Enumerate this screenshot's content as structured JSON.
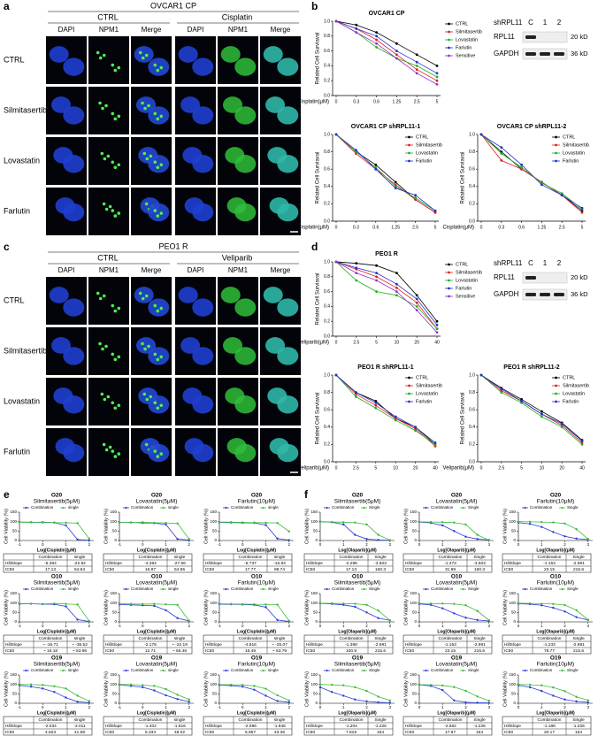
{
  "panel_a": {
    "label": "a",
    "title": "OVCAR1 CP",
    "groups": [
      {
        "name": "CTRL",
        "channels": [
          "DAPI",
          "NPM1",
          "Merge"
        ]
      },
      {
        "name": "Cisplatin",
        "channels": [
          "DAPI",
          "NPM1",
          "Merge"
        ]
      }
    ],
    "rows": [
      "CTRL",
      "Silmitasertib",
      "Lovastatin",
      "Farlutin"
    ]
  },
  "panel_c": {
    "label": "c",
    "title": "PEO1 R",
    "groups": [
      {
        "name": "CTRL",
        "channels": [
          "DAPI",
          "NPM1",
          "Merge"
        ]
      },
      {
        "name": "Veliparib",
        "channels": [
          "DAPI",
          "NPM1",
          "Merge"
        ]
      }
    ],
    "rows": [
      "CTRL",
      "Silmitasertib",
      "Lovastatin",
      "Farlutin"
    ]
  },
  "panel_b": {
    "label": "b",
    "type": "line",
    "xlabel": "Cisplatin(μM)",
    "ylabel": "Related Cell Surviaval",
    "categories": [
      "0",
      "0.3",
      "0.6",
      "1.25",
      "2.5",
      "5"
    ],
    "ylim": [
      0,
      1
    ],
    "yticks": [
      {
        "value": 0,
        "label": "0.0"
      },
      0.2,
      0.4,
      0.6,
      0.8,
      {
        "value": 1,
        "label": "1.0"
      }
    ],
    "series": [
      {
        "name": "CTRL",
        "color": "#000000"
      },
      {
        "name": "Silmitasertib",
        "color": "#e02020"
      },
      {
        "name": "Lovastatin",
        "color": "#22b022"
      },
      {
        "name": "Farlutin",
        "color": "#2030d0"
      },
      {
        "name": "Sensitive",
        "color": "#9a2fc8"
      }
    ],
    "charts": [
      {
        "title": "OVCAR1 CP",
        "values": [
          [
            1,
            0.95,
            0.85,
            0.7,
            0.55,
            0.4
          ],
          [
            1,
            0.9,
            0.75,
            0.55,
            0.35,
            0.2
          ],
          [
            1,
            0.85,
            0.65,
            0.5,
            0.4,
            0.25
          ],
          [
            1,
            0.9,
            0.8,
            0.6,
            0.45,
            0.3
          ],
          [
            1,
            0.85,
            0.7,
            0.5,
            0.3,
            0.15
          ]
        ]
      },
      {
        "title": "OVCAR1 CP shRPL11-1",
        "values": [
          [
            1,
            0.8,
            0.65,
            0.45,
            0.25,
            0.1
          ],
          [
            1,
            0.78,
            0.6,
            0.42,
            0.25,
            0.1
          ],
          [
            1,
            0.8,
            0.62,
            0.4,
            0.27,
            0.12
          ],
          [
            1,
            0.82,
            0.6,
            0.38,
            0.3,
            0.12
          ]
        ]
      },
      {
        "title": "OVCAR1 CP shRPL11-2",
        "values": [
          [
            1,
            0.8,
            0.6,
            0.45,
            0.3,
            0.12
          ],
          [
            1,
            0.7,
            0.6,
            0.45,
            0.3,
            0.1
          ],
          [
            1,
            0.78,
            0.62,
            0.44,
            0.32,
            0.14
          ],
          [
            1,
            0.85,
            0.65,
            0.42,
            0.3,
            0.15
          ]
        ]
      }
    ],
    "blot": {
      "header": "shRPL11",
      "lanes": [
        "C",
        "1",
        "2"
      ],
      "bands": [
        {
          "name": "RPL11",
          "size": "20 kD"
        },
        {
          "name": "GAPDH",
          "size": "36 kD"
        }
      ]
    }
  },
  "panel_d": {
    "label": "d",
    "type": "line",
    "xlabel": "Veliparib(μM)",
    "ylabel": "Related Cell Surviaval",
    "categories": [
      "0",
      "2.5",
      "5",
      "10",
      "20",
      "40"
    ],
    "ylim": [
      0,
      1
    ],
    "yticks": [
      {
        "value": 0,
        "label": "0.0"
      },
      0.2,
      0.4,
      0.6,
      0.8,
      {
        "value": 1,
        "label": "1.0"
      }
    ],
    "series": [
      {
        "name": "CTRL",
        "color": "#000000"
      },
      {
        "name": "Silmitasertib",
        "color": "#e02020"
      },
      {
        "name": "Lovastatin",
        "color": "#22b022"
      },
      {
        "name": "Farlutin",
        "color": "#2030d0"
      },
      {
        "name": "Sensitive",
        "color": "#9a2fc8"
      }
    ],
    "charts": [
      {
        "title": "PEO1 R",
        "values": [
          [
            1,
            0.98,
            0.95,
            0.85,
            0.55,
            0.2
          ],
          [
            1,
            0.9,
            0.8,
            0.65,
            0.45,
            0.1
          ],
          [
            1,
            0.75,
            0.6,
            0.55,
            0.4,
            0.1
          ],
          [
            1,
            0.92,
            0.85,
            0.7,
            0.5,
            0.15
          ],
          [
            1,
            0.85,
            0.75,
            0.6,
            0.35,
            0.05
          ]
        ]
      },
      {
        "title": "PEO1 R shRPL11-1",
        "values": [
          [
            1,
            0.8,
            0.7,
            0.5,
            0.4,
            0.2
          ],
          [
            1,
            0.78,
            0.65,
            0.5,
            0.38,
            0.18
          ],
          [
            1,
            0.75,
            0.62,
            0.48,
            0.36,
            0.2
          ],
          [
            1,
            0.8,
            0.68,
            0.52,
            0.4,
            0.22
          ]
        ]
      },
      {
        "title": "PEO1 R shRPL11-2",
        "values": [
          [
            1,
            0.85,
            0.72,
            0.58,
            0.45,
            0.25
          ],
          [
            1,
            0.82,
            0.7,
            0.55,
            0.42,
            0.22
          ],
          [
            1,
            0.8,
            0.68,
            0.52,
            0.4,
            0.2
          ],
          [
            1,
            0.84,
            0.7,
            0.55,
            0.44,
            0.24
          ]
        ]
      }
    ],
    "blot": {
      "header": "shRPL11",
      "lanes": [
        "C",
        "1",
        "2"
      ],
      "bands": [
        {
          "name": "RPL11",
          "size": "20 kD"
        },
        {
          "name": "GAPDH",
          "size": "36 kD"
        }
      ]
    }
  },
  "panel_e": {
    "label": "e",
    "type": "scatter",
    "xlabel": "Log[Cisplatin](μM)",
    "ylabel": "Cell Viability (%)",
    "xlim": [
      -1,
      2.2
    ],
    "xticks": [
      -1,
      0,
      1,
      2
    ],
    "ylim": [
      0,
      150
    ],
    "yticks": [
      0,
      50,
      100,
      150
    ],
    "x": [
      -1,
      -0.5,
      0,
      0.5,
      1,
      1.5,
      2
    ],
    "series": [
      {
        "name": "Combination",
        "color": "#2b3bd6"
      },
      {
        "name": "single",
        "color": "#3dbb3d"
      }
    ],
    "table_rows": [
      "HillSlope",
      "IC50"
    ],
    "charts": [
      {
        "title": "O20",
        "subtitle": "Silmitasertib(5μM)",
        "values": [
          [
            98,
            97,
            96,
            95,
            80,
            5,
            1
          ],
          [
            97,
            96,
            98,
            95,
            94,
            92,
            10
          ]
        ],
        "table": [
          [
            "-5.364",
            "-22.82"
          ],
          [
            "17.13",
            "54.64"
          ]
        ]
      },
      {
        "title": "O20",
        "subtitle": "Lovastatin(5μM)",
        "values": [
          [
            95,
            96,
            93,
            92,
            85,
            8,
            2
          ],
          [
            96,
            95,
            97,
            94,
            93,
            90,
            8
          ]
        ],
        "table": [
          [
            "-4.394",
            "-27.66"
          ],
          [
            "16.87",
            "54.55"
          ]
        ]
      },
      {
        "title": "O20",
        "subtitle": "Farlutin(10μM)",
        "values": [
          [
            96,
            95,
            94,
            93,
            82,
            10,
            2
          ],
          [
            98,
            97,
            96,
            95,
            94,
            93,
            48
          ]
        ],
        "table": [
          [
            "-5.737",
            "-16.83"
          ],
          [
            "17.77",
            "98.74"
          ]
        ]
      },
      {
        "title": "O10",
        "subtitle": "Silmitasertib(5μM)",
        "values": [
          [
            95,
            96,
            94,
            93,
            82,
            12,
            2
          ],
          [
            97,
            96,
            95,
            97,
            95,
            92,
            5
          ]
        ],
        "table": [
          [
            "~ -16.71",
            "~ -36.52"
          ],
          [
            "~ 15.18",
            "~ 53.96"
          ]
        ]
      },
      {
        "title": "O10",
        "subtitle": "Lovastatin(5μM)",
        "values": [
          [
            92,
            90,
            88,
            85,
            62,
            20,
            5
          ],
          [
            96,
            95,
            94,
            95,
            93,
            90,
            6
          ]
        ],
        "table": [
          [
            "-2.178",
            "~ -22.19"
          ],
          [
            "12.71",
            "~ 55.46"
          ]
        ]
      },
      {
        "title": "O10",
        "subtitle": "Farlutin(10μM)",
        "values": [
          [
            94,
            93,
            92,
            90,
            78,
            10,
            2
          ],
          [
            96,
            95,
            94,
            93,
            92,
            91,
            6
          ]
        ],
        "table": [
          [
            "-4.816",
            "~ -25.07"
          ],
          [
            "16.49",
            "~ 53.79"
          ]
        ]
      },
      {
        "title": "O19",
        "subtitle": "Silmitasertib(5μM)",
        "values": [
          [
            95,
            88,
            78,
            60,
            30,
            8,
            3
          ],
          [
            100,
            99,
            97,
            90,
            78,
            40,
            12
          ]
        ],
        "table": [
          [
            "-2.034",
            "-2.011"
          ],
          [
            "4.623",
            "41.58"
          ]
        ]
      },
      {
        "title": "O19",
        "subtitle": "Lovastatin(5μM)",
        "values": [
          [
            98,
            92,
            85,
            68,
            42,
            22,
            8
          ],
          [
            100,
            99,
            96,
            92,
            75,
            45,
            20
          ]
        ],
        "table": [
          [
            "-1.402",
            "-1.816"
          ],
          [
            "5.334",
            "48.02"
          ]
        ]
      },
      {
        "title": "O19",
        "subtitle": "Farlutin(10μM)",
        "values": [
          [
            96,
            94,
            88,
            72,
            40,
            12,
            5
          ],
          [
            99,
            98,
            97,
            92,
            77,
            42,
            15
          ]
        ],
        "table": [
          [
            "-2.096",
            "-1.946"
          ],
          [
            "5.957",
            "43.36"
          ]
        ]
      }
    ]
  },
  "panel_f": {
    "label": "f",
    "type": "scatter",
    "xlabel": "Log[Olaparib](μM)",
    "ylabel": "Cell Viability (%)",
    "xlim": [
      0,
      3.2
    ],
    "xticks": [
      0,
      1,
      2,
      3
    ],
    "ylim": [
      0,
      150
    ],
    "yticks": [
      0,
      50,
      100,
      150
    ],
    "x": [
      0,
      0.5,
      1,
      1.5,
      2,
      2.5,
      3
    ],
    "series": [
      {
        "name": "Combination",
        "color": "#2b3bd6"
      },
      {
        "name": "Single",
        "color": "#3dbb3d"
      }
    ],
    "table_rows": [
      "HillSlope",
      "IC50"
    ],
    "charts": [
      {
        "title": "O20",
        "subtitle": "Silmitasertib(5μM)",
        "values": [
          [
            100,
            97,
            85,
            30,
            8,
            3,
            1
          ],
          [
            99,
            98,
            97,
            95,
            85,
            30,
            2
          ]
        ],
        "table": [
          [
            "-2.296",
            "-3.503"
          ],
          [
            "17.13",
            "160.3"
          ]
        ]
      },
      {
        "title": "O20",
        "subtitle": "Lovastatin(5μM)",
        "values": [
          [
            98,
            93,
            80,
            50,
            20,
            8,
            3
          ],
          [
            99,
            98,
            97,
            95,
            85,
            30,
            2
          ]
        ],
        "table": [
          [
            "-1.473",
            "-3.503"
          ],
          [
            "31.89",
            "160.3"
          ]
        ]
      },
      {
        "title": "O20",
        "subtitle": "Farlutin(10μM)",
        "values": [
          [
            95,
            88,
            72,
            45,
            22,
            10,
            5
          ],
          [
            100,
            99,
            98,
            96,
            90,
            60,
            8
          ]
        ],
        "table": [
          [
            "-1.153",
            "-2.991"
          ],
          [
            "23.15",
            "215.6"
          ]
        ]
      },
      {
        "title": "O10",
        "subtitle": "Silmitasertib(5μM)",
        "values": [
          [
            98,
            95,
            90,
            80,
            50,
            20,
            8
          ],
          [
            99,
            98,
            97,
            96,
            90,
            60,
            8
          ]
        ],
        "table": [
          [
            "-1.398",
            "-2.991"
          ],
          [
            "100.9",
            "215.6"
          ]
        ]
      },
      {
        "title": "O10",
        "subtitle": "Lovastatin(5μM)",
        "values": [
          [
            95,
            90,
            72,
            45,
            22,
            10,
            5
          ],
          [
            98,
            97,
            97,
            95,
            88,
            58,
            9
          ]
        ],
        "table": [
          [
            "-1.153",
            "-2.991"
          ],
          [
            "23.15",
            "215.6"
          ]
        ]
      },
      {
        "title": "O10",
        "subtitle": "Farlutin(10μM)",
        "values": [
          [
            96,
            94,
            88,
            75,
            55,
            25,
            10
          ],
          [
            99,
            98,
            96,
            95,
            89,
            62,
            10
          ]
        ],
        "table": [
          [
            "-1.233",
            "-2.991"
          ],
          [
            "78.77",
            "215.6"
          ]
        ]
      },
      {
        "title": "O19",
        "subtitle": "Silmitasertib(5μM)",
        "values": [
          [
            85,
            60,
            40,
            20,
            10,
            5,
            3
          ],
          [
            100,
            98,
            95,
            85,
            65,
            35,
            15
          ]
        ],
        "table": [
          [
            "-1.204",
            "-1.226"
          ],
          [
            "7.619",
            "154"
          ]
        ]
      },
      {
        "title": "O19",
        "subtitle": "Lovastatin(5μM)",
        "values": [
          [
            98,
            92,
            70,
            15,
            5,
            3,
            2
          ],
          [
            99,
            97,
            94,
            86,
            66,
            36,
            14
          ]
        ],
        "table": [
          [
            "-2.562",
            "-1.226"
          ],
          [
            "17.67",
            "154"
          ]
        ]
      },
      {
        "title": "O19",
        "subtitle": "Farlutin(10μM)",
        "values": [
          [
            95,
            85,
            65,
            40,
            20,
            10,
            5
          ],
          [
            100,
            98,
            95,
            84,
            64,
            34,
            16
          ]
        ],
        "table": [
          [
            "-1.188",
            "-1.226"
          ],
          [
            "20.17",
            "154"
          ]
        ]
      }
    ]
  }
}
